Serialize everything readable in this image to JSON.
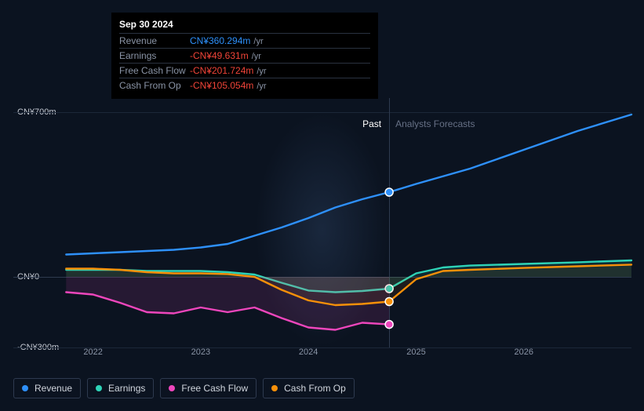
{
  "tooltip": {
    "date": "Sep 30 2024",
    "rows": [
      {
        "label": "Revenue",
        "value": "CN¥360.294m",
        "color": "#2e90fa",
        "unit": "/yr"
      },
      {
        "label": "Earnings",
        "value": "-CN¥49.631m",
        "color": "#f04438",
        "unit": "/yr"
      },
      {
        "label": "Free Cash Flow",
        "value": "-CN¥201.724m",
        "color": "#f04438",
        "unit": "/yr"
      },
      {
        "label": "Cash From Op",
        "value": "-CN¥105.054m",
        "color": "#f04438",
        "unit": "/yr"
      }
    ]
  },
  "chart": {
    "type": "line",
    "background_color": "#0b1320",
    "grid_color": "#1c2738",
    "baseline_color": "#2e3a4f",
    "currency_prefix": "CN¥",
    "x_label_fontsize": 11,
    "y_label_fontsize": 11,
    "label_color": "#8a94a6",
    "line_width": 2.4,
    "marker_radius": 5,
    "marker_stroke": "#ffffff",
    "y_axis": {
      "min": -300,
      "max": 700,
      "ticks": [
        {
          "value": 700,
          "label": "CN¥700m"
        },
        {
          "value": 0,
          "label": "CN¥0"
        },
        {
          "value": -300,
          "label": "-CN¥300m"
        }
      ]
    },
    "x_axis": {
      "min": 2021.5,
      "max": 2027,
      "split": 2024.75,
      "ticks": [
        {
          "value": 2022,
          "label": "2022"
        },
        {
          "value": 2023,
          "label": "2023"
        },
        {
          "value": 2024,
          "label": "2024"
        },
        {
          "value": 2025,
          "label": "2025"
        },
        {
          "value": 2026,
          "label": "2026"
        }
      ]
    },
    "sections": {
      "past_label": "Past",
      "forecast_label": "Analysts Forecasts"
    },
    "series": [
      {
        "key": "revenue",
        "name": "Revenue",
        "color": "#2e90fa",
        "fill_opacity": 0,
        "marker_at_split": true,
        "points": [
          [
            2021.75,
            95
          ],
          [
            2022.0,
            100
          ],
          [
            2022.25,
            105
          ],
          [
            2022.5,
            110
          ],
          [
            2022.75,
            115
          ],
          [
            2023.0,
            125
          ],
          [
            2023.25,
            140
          ],
          [
            2023.5,
            175
          ],
          [
            2023.75,
            210
          ],
          [
            2024.0,
            250
          ],
          [
            2024.25,
            295
          ],
          [
            2024.5,
            330
          ],
          [
            2024.75,
            360
          ],
          [
            2025.0,
            395
          ],
          [
            2025.5,
            460
          ],
          [
            2026.0,
            540
          ],
          [
            2026.5,
            620
          ],
          [
            2027.0,
            690
          ]
        ]
      },
      {
        "key": "earnings",
        "name": "Earnings",
        "color": "#2ed3b7",
        "fill_opacity": 0.12,
        "marker_at_split": true,
        "points": [
          [
            2021.75,
            30
          ],
          [
            2022.0,
            30
          ],
          [
            2022.25,
            30
          ],
          [
            2022.5,
            25
          ],
          [
            2022.75,
            25
          ],
          [
            2023.0,
            25
          ],
          [
            2023.25,
            20
          ],
          [
            2023.5,
            10
          ],
          [
            2023.75,
            -25
          ],
          [
            2024.0,
            -58
          ],
          [
            2024.25,
            -65
          ],
          [
            2024.5,
            -60
          ],
          [
            2024.75,
            -50
          ],
          [
            2025.0,
            15
          ],
          [
            2025.25,
            40
          ],
          [
            2025.5,
            48
          ],
          [
            2026.0,
            55
          ],
          [
            2026.5,
            62
          ],
          [
            2027.0,
            70
          ]
        ]
      },
      {
        "key": "free_cash_flow",
        "name": "Free Cash Flow",
        "color": "#ee46bc",
        "fill_opacity": 0.12,
        "marker_at_split": true,
        "points": [
          [
            2021.75,
            -65
          ],
          [
            2022.0,
            -75
          ],
          [
            2022.25,
            -110
          ],
          [
            2022.5,
            -150
          ],
          [
            2022.75,
            -155
          ],
          [
            2023.0,
            -130
          ],
          [
            2023.25,
            -150
          ],
          [
            2023.5,
            -130
          ],
          [
            2023.75,
            -175
          ],
          [
            2024.0,
            -215
          ],
          [
            2024.25,
            -225
          ],
          [
            2024.5,
            -195
          ],
          [
            2024.75,
            -202
          ]
        ]
      },
      {
        "key": "cash_from_op",
        "name": "Cash From Op",
        "color": "#f79009",
        "fill_opacity": 0.08,
        "marker_at_split": true,
        "points": [
          [
            2021.75,
            35
          ],
          [
            2022.0,
            35
          ],
          [
            2022.25,
            30
          ],
          [
            2022.5,
            20
          ],
          [
            2022.75,
            15
          ],
          [
            2023.0,
            15
          ],
          [
            2023.25,
            12
          ],
          [
            2023.5,
            0
          ],
          [
            2023.75,
            -55
          ],
          [
            2024.0,
            -100
          ],
          [
            2024.25,
            -120
          ],
          [
            2024.5,
            -115
          ],
          [
            2024.75,
            -105
          ],
          [
            2025.0,
            -10
          ],
          [
            2025.25,
            25
          ],
          [
            2025.5,
            30
          ],
          [
            2026.0,
            38
          ],
          [
            2026.5,
            45
          ],
          [
            2027.0,
            52
          ]
        ]
      }
    ]
  },
  "legend": [
    {
      "key": "revenue",
      "label": "Revenue",
      "color": "#2e90fa"
    },
    {
      "key": "earnings",
      "label": "Earnings",
      "color": "#2ed3b7"
    },
    {
      "key": "free_cash_flow",
      "label": "Free Cash Flow",
      "color": "#ee46bc"
    },
    {
      "key": "cash_from_op",
      "label": "Cash From Op",
      "color": "#f79009"
    }
  ]
}
